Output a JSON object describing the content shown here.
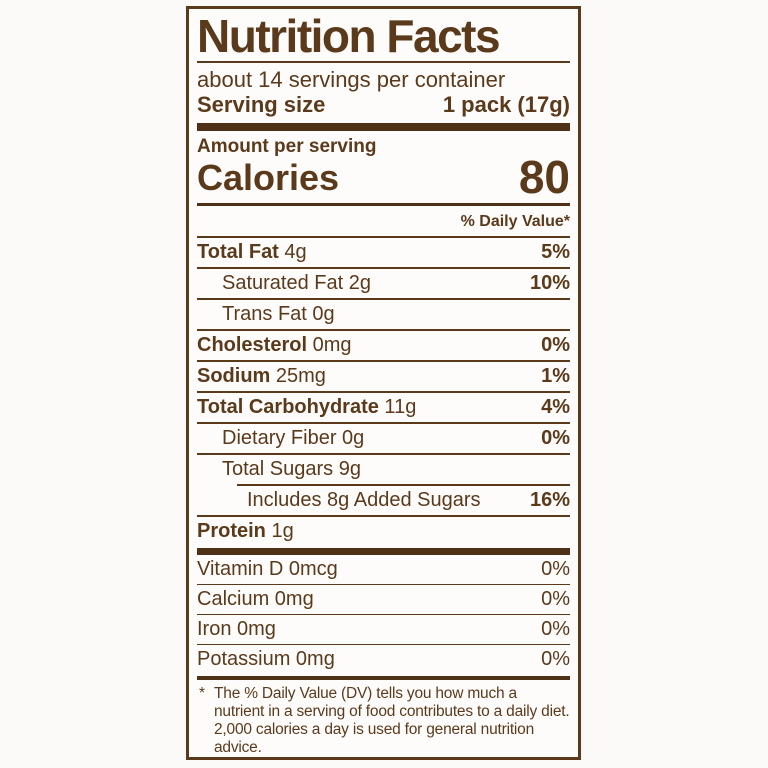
{
  "label": {
    "title": "Nutrition Facts",
    "servings_per_container": "about 14 servings per container",
    "serving_size_label": "Serving size",
    "serving_size_value": "1 pack (17g)",
    "amount_per_serving": "Amount per serving",
    "calories_label": "Calories",
    "calories_value": "80",
    "daily_value_header": "% Daily Value*",
    "nutrients": [
      {
        "name": "Total Fat",
        "amount": "4g",
        "dv": "5%",
        "bold": true,
        "indent": 0
      },
      {
        "name": "Saturated Fat",
        "amount": "2g",
        "dv": "10%",
        "bold": false,
        "indent": 1
      },
      {
        "name": "Trans Fat",
        "amount": "0g",
        "dv": "",
        "bold": false,
        "indent": 1
      },
      {
        "name": "Cholesterol",
        "amount": "0mg",
        "dv": "0%",
        "bold": true,
        "indent": 0
      },
      {
        "name": "Sodium",
        "amount": "25mg",
        "dv": "1%",
        "bold": true,
        "indent": 0
      },
      {
        "name": "Total Carbohydrate",
        "amount": "11g",
        "dv": "4%",
        "bold": true,
        "indent": 0
      },
      {
        "name": "Dietary Fiber",
        "amount": "0g",
        "dv": "0%",
        "bold": false,
        "indent": 1
      },
      {
        "name": "Total Sugars",
        "amount": "9g",
        "dv": "",
        "bold": false,
        "indent": 1
      },
      {
        "name": "Includes 8g Added Sugars",
        "amount": "",
        "dv": "16%",
        "bold": false,
        "indent": 2,
        "partial_rule": true
      },
      {
        "name": "Protein",
        "amount": "1g",
        "dv": "",
        "bold": true,
        "indent": 0
      }
    ],
    "micronutrients": [
      {
        "name": "Vitamin D 0mcg",
        "dv": "0%"
      },
      {
        "name": "Calcium 0mg",
        "dv": "0%"
      },
      {
        "name": "Iron 0mg",
        "dv": "0%"
      },
      {
        "name": "Potassium 0mg",
        "dv": "0%"
      }
    ],
    "footnote_marker": "*",
    "footnote": "The % Daily Value (DV) tells you how much a nutrient in a serving of food contributes to a daily diet. 2,000 calories a day is used for general nutrition advice."
  },
  "colors": {
    "brown": "#5b3a1c",
    "bar": "#4e3116",
    "page_background": "#fbfaf8",
    "label_background": "#fdfcfa"
  }
}
